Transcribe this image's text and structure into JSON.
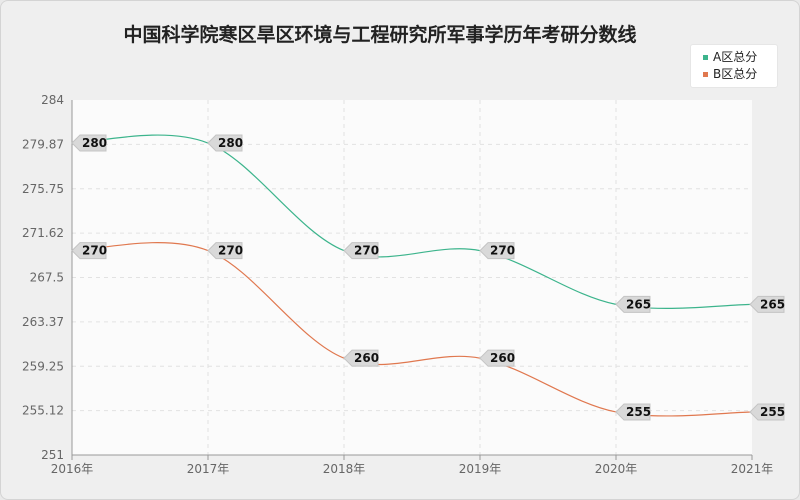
{
  "chart_data": {
    "type": "line",
    "title": "中国科学院寒区旱区环境与工程研究所军事学历年考研分数线",
    "categories": [
      "2016年",
      "2017年",
      "2018年",
      "2019年",
      "2020年",
      "2021年"
    ],
    "y_ticks": [
      "284",
      "279.87",
      "275.75",
      "271.62",
      "267.5",
      "263.37",
      "259.25",
      "255.12",
      "251"
    ],
    "ylim": [
      251,
      284
    ],
    "grid": true,
    "legend_position": "top-right",
    "series": [
      {
        "name": "A区总分",
        "color": "#3cb48c",
        "values": [
          280,
          280,
          270,
          270,
          265,
          265
        ]
      },
      {
        "name": "B区总分",
        "color": "#e0784f",
        "values": [
          270,
          270,
          260,
          260,
          255,
          255
        ]
      }
    ]
  }
}
